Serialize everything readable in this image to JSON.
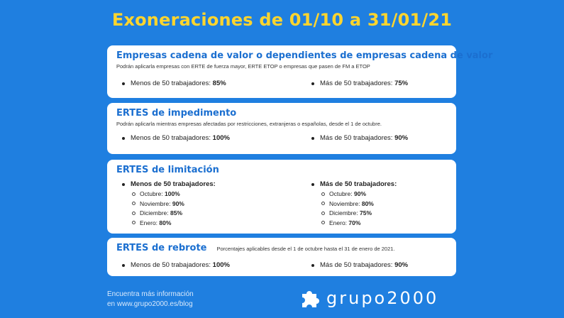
{
  "title": "Exoneraciones de 01/10 a 31/01/21",
  "cards": [
    {
      "title": "Empresas cadena de valor o dependientes de empresas cadena de valor",
      "subtitle": "Podrán aplicarla empresas con ERTE de fuerza mayor, ERTE ETOP o empresas que pasen de FM a ETOP",
      "left_label": "Menos de 50 trabajadores:",
      "left_value": "85%",
      "right_label": "Más de 50 trabajadores:",
      "right_value": "75%"
    },
    {
      "title": "ERTES de impedimento",
      "subtitle": "Podrán aplicarla mientras empresas afectadas por restricciones, extranjeras o españolas, desde el 1 de octubre.",
      "left_label": "Menos de 50 trabajadores:",
      "left_value": "100%",
      "right_label": "Más de 50 trabajadores:",
      "right_value": "90%"
    },
    {
      "title": "ERTES de limitación",
      "left_heading": "Menos de 50 trabajadores:",
      "right_heading": "Más de 50 trabajadores:",
      "left_items": [
        {
          "label": "Octubre:",
          "value": "100%"
        },
        {
          "label": "Noviembre:",
          "value": "90%"
        },
        {
          "label": "Diciembre:",
          "value": "85%"
        },
        {
          "label": "Enero:",
          "value": "80%"
        }
      ],
      "right_items": [
        {
          "label": "Octubre:",
          "value": "90%"
        },
        {
          "label": "Noviembre:",
          "value": "80%"
        },
        {
          "label": "Diciembre:",
          "value": "75%"
        },
        {
          "label": "Enero:",
          "value": "70%"
        }
      ]
    },
    {
      "title": "ERTES de rebrote",
      "subtitle": "Porcentajes aplicables desde el 1 de octubre hasta el 31 de enero de 2021.",
      "left_label": "Menos de 50 trabajadores:",
      "left_value": "100%",
      "right_label": "Más de 50 trabajadores:",
      "right_value": "90%"
    }
  ],
  "footer": {
    "line1": "Encuentra más información",
    "line2": "en www.grupo2000.es/blog"
  },
  "logo": {
    "text": "grupo2000",
    "icon": "puzzle-icon"
  }
}
